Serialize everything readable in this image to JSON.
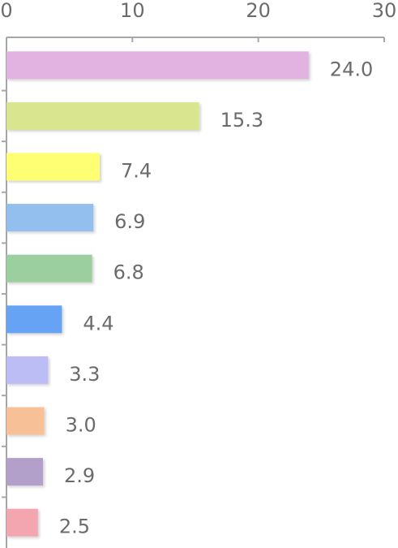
{
  "chart_data": {
    "type": "bar",
    "orientation": "horizontal",
    "categories": [
      null,
      null,
      null,
      null,
      null,
      null,
      null,
      null,
      null,
      null
    ],
    "values": [
      24,
      15.3,
      7.4,
      6.9,
      6.8,
      4.4,
      3.3,
      3,
      2.9,
      2.5
    ],
    "value_labels": [
      "24.0",
      "15.3",
      "7.4",
      "6.9",
      "6.8",
      "4.4",
      "3.3",
      "3.0",
      "2.9",
      "2.5"
    ],
    "colors": [
      "#e2b3e0",
      "#d9e68f",
      "#ffff73",
      "#93bfee",
      "#9ccf9f",
      "#66a3f5",
      "#bdbdf5",
      "#f8c096",
      "#b3a0ca",
      "#f4a6b0"
    ],
    "xlim": [
      0,
      30
    ],
    "xticks": [
      0,
      10,
      20,
      30
    ],
    "grid": false
  }
}
